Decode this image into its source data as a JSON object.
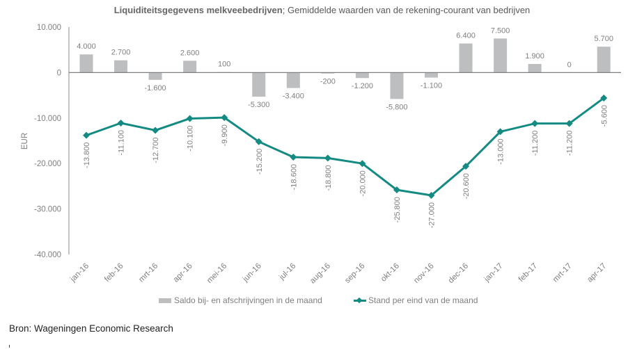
{
  "chart_data": {
    "type": "bar+line",
    "title_bold": "Liquiditeitsgegevens melkveebedrijven",
    "title_rest": "; Gemiddelde waarden van de rekening-courant van bedrijven",
    "ylabel": "EUR",
    "xlabel": "",
    "ylim": [
      -40000,
      10000
    ],
    "yticks": [
      10000,
      0,
      -10000,
      -20000,
      -30000,
      -40000
    ],
    "ytick_labels": [
      "10.000",
      "0",
      "-10.000",
      "-20.000",
      "-30.000",
      "-40.000"
    ],
    "grid": false,
    "categories": [
      "jan-16",
      "feb-16",
      "mrt-16",
      "apr-16",
      "mei-16",
      "jun-16",
      "jul-16",
      "aug-16",
      "sep-16",
      "okt-16",
      "nov-16",
      "dec-16",
      "jan-17",
      "feb-17",
      "mrt-17",
      "apr-17"
    ],
    "series": [
      {
        "name": "Saldo bij- en afschrijvingen in de maand",
        "type": "bar",
        "color": "#bcbec0",
        "values": [
          4000,
          2700,
          -1600,
          2600,
          100,
          -5300,
          -3400,
          -200,
          -1200,
          -5800,
          -1100,
          6400,
          7500,
          1900,
          0,
          5700
        ],
        "labels": [
          "4.000",
          "2.700",
          "-1.600",
          "2.600",
          "100",
          "-5.300",
          "-3.400",
          "-200",
          "-1.200",
          "-5.800",
          "-1.100",
          "6.400",
          "7.500",
          "1.900",
          "0",
          "5.700"
        ]
      },
      {
        "name": "Stand per eind van de maand",
        "type": "line",
        "color": "#138b82",
        "values": [
          -13800,
          -11100,
          -12700,
          -10100,
          -9900,
          -15200,
          -18600,
          -18800,
          -20000,
          -25800,
          -27000,
          -20600,
          -13000,
          -11200,
          -11200,
          -5600
        ],
        "labels": [
          "-13.800",
          "-11.100",
          "-12.700",
          "-10.100",
          "-9.900",
          "-15.200",
          "-18.600",
          "-18.800",
          "-20.000",
          "-25.800",
          "-27.000",
          "-20.600",
          "-13.000",
          "-11.200",
          "-11.200",
          "-5.600"
        ]
      }
    ],
    "legend_position": "bottom"
  },
  "source": "Bron: Wageningen Economic Research"
}
